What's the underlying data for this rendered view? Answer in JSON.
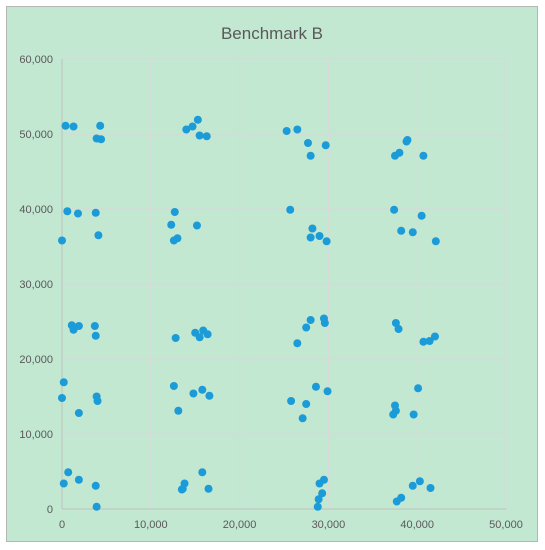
{
  "chart_data": {
    "type": "scatter",
    "title": "Benchmark B",
    "xlabel": "",
    "ylabel": "",
    "xlim": [
      0,
      50000
    ],
    "ylim": [
      0,
      60000
    ],
    "x_ticks": [
      0,
      10000,
      20000,
      30000,
      40000,
      50000
    ],
    "y_ticks": [
      0,
      10000,
      20000,
      30000,
      40000,
      50000,
      60000
    ],
    "x_tick_labels": [
      "0",
      "10,000",
      "20,000",
      "30,000",
      "40,000",
      "50,000"
    ],
    "y_tick_labels": [
      "0",
      "10,000",
      "20,000",
      "30,000",
      "40,000",
      "50,000",
      "60,000"
    ],
    "grid": true,
    "legend": "none",
    "colors": {
      "background": "#c2e8d2",
      "point": "#1b9bd7",
      "grid": "#d9d9d9",
      "axis": "#bfbfbf",
      "text": "#595959"
    },
    "series": [
      {
        "points": [
          [
            400,
            51100
          ],
          [
            1300,
            51000
          ],
          [
            4300,
            51100
          ],
          [
            3900,
            49400
          ],
          [
            4400,
            49300
          ],
          [
            14000,
            50600
          ],
          [
            14700,
            51000
          ],
          [
            15300,
            51900
          ],
          [
            15500,
            49800
          ],
          [
            16300,
            49700
          ],
          [
            25300,
            50400
          ],
          [
            26500,
            50600
          ],
          [
            27700,
            48800
          ],
          [
            28000,
            47100
          ],
          [
            29700,
            48500
          ],
          [
            37500,
            47100
          ],
          [
            38000,
            47500
          ],
          [
            38800,
            49000
          ],
          [
            38900,
            49200
          ],
          [
            40700,
            47100
          ],
          [
            600,
            39700
          ],
          [
            1800,
            39400
          ],
          [
            3800,
            39500
          ],
          [
            4100,
            36500
          ],
          [
            0,
            35800
          ],
          [
            12300,
            37900
          ],
          [
            12700,
            39600
          ],
          [
            12600,
            35800
          ],
          [
            13000,
            36100
          ],
          [
            15200,
            37800
          ],
          [
            25700,
            39900
          ],
          [
            28200,
            37400
          ],
          [
            28000,
            36200
          ],
          [
            29000,
            36400
          ],
          [
            29800,
            35700
          ],
          [
            37400,
            39900
          ],
          [
            38200,
            37100
          ],
          [
            39500,
            36900
          ],
          [
            40500,
            39100
          ],
          [
            42100,
            35700
          ],
          [
            1100,
            24500
          ],
          [
            1300,
            23900
          ],
          [
            1900,
            24400
          ],
          [
            3700,
            24400
          ],
          [
            3800,
            23100
          ],
          [
            12800,
            22800
          ],
          [
            15000,
            23500
          ],
          [
            15500,
            22900
          ],
          [
            15900,
            23800
          ],
          [
            16400,
            23300
          ],
          [
            26500,
            22100
          ],
          [
            27500,
            24200
          ],
          [
            28000,
            25200
          ],
          [
            29500,
            25400
          ],
          [
            29600,
            24800
          ],
          [
            37600,
            24800
          ],
          [
            37900,
            24000
          ],
          [
            40700,
            22300
          ],
          [
            41400,
            22400
          ],
          [
            42000,
            23000
          ],
          [
            200,
            16900
          ],
          [
            0,
            14800
          ],
          [
            1900,
            12800
          ],
          [
            3900,
            15000
          ],
          [
            4000,
            14400
          ],
          [
            12600,
            16400
          ],
          [
            13100,
            13100
          ],
          [
            14800,
            15400
          ],
          [
            15800,
            15900
          ],
          [
            16600,
            15100
          ],
          [
            25800,
            14400
          ],
          [
            27100,
            12100
          ],
          [
            27500,
            14000
          ],
          [
            28600,
            16300
          ],
          [
            29900,
            15700
          ],
          [
            37500,
            13800
          ],
          [
            37300,
            12600
          ],
          [
            37600,
            13100
          ],
          [
            39600,
            12600
          ],
          [
            40100,
            16100
          ],
          [
            700,
            4900
          ],
          [
            200,
            3400
          ],
          [
            1900,
            3900
          ],
          [
            3800,
            3100
          ],
          [
            3900,
            300
          ],
          [
            13500,
            2600
          ],
          [
            13800,
            3400
          ],
          [
            15800,
            4900
          ],
          [
            16500,
            2700
          ],
          [
            13600,
            2700
          ],
          [
            28800,
            300
          ],
          [
            28900,
            1300
          ],
          [
            29300,
            2100
          ],
          [
            29500,
            3900
          ],
          [
            29000,
            3400
          ],
          [
            37700,
            1000
          ],
          [
            38200,
            1500
          ],
          [
            39500,
            3100
          ],
          [
            40300,
            3700
          ],
          [
            41500,
            2800
          ]
        ]
      }
    ]
  }
}
